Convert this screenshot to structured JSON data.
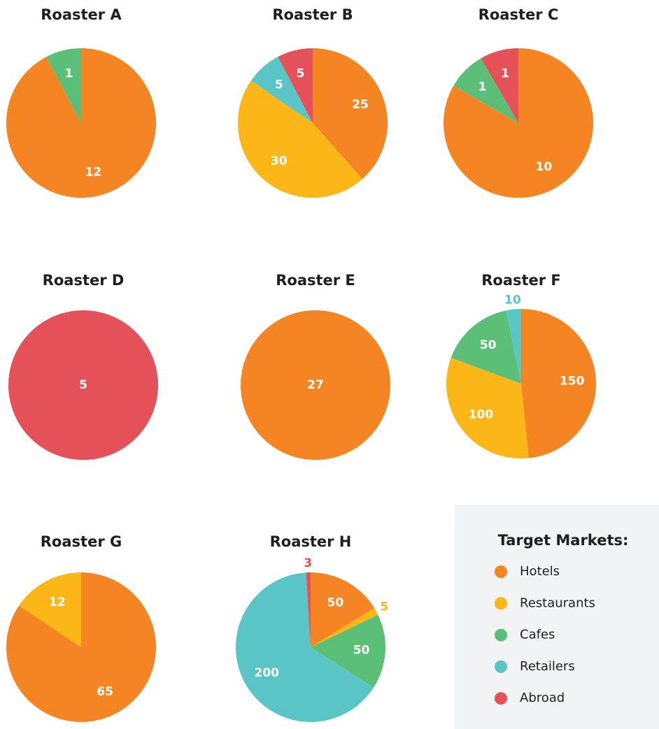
{
  "chart_data": [
    {
      "type": "pie",
      "title": "Roaster A",
      "categories": [
        "Hotels",
        "Cafes"
      ],
      "values": [
        12,
        1
      ]
    },
    {
      "type": "pie",
      "title": "Roaster B",
      "categories": [
        "Hotels",
        "Restaurants",
        "Retailers",
        "Abroad"
      ],
      "values": [
        25,
        30,
        5,
        5
      ]
    },
    {
      "type": "pie",
      "title": "Roaster C",
      "categories": [
        "Hotels",
        "Cafes",
        "Abroad"
      ],
      "values": [
        10,
        1,
        1
      ]
    },
    {
      "type": "pie",
      "title": "Roaster D",
      "categories": [
        "Abroad"
      ],
      "values": [
        5
      ]
    },
    {
      "type": "pie",
      "title": "Roaster E",
      "categories": [
        "Hotels"
      ],
      "values": [
        27
      ]
    },
    {
      "type": "pie",
      "title": "Roaster F",
      "categories": [
        "Hotels",
        "Restaurants",
        "Cafes",
        "Retailers"
      ],
      "values": [
        150,
        100,
        50,
        10
      ]
    },
    {
      "type": "pie",
      "title": "Roaster G",
      "categories": [
        "Hotels",
        "Restaurants"
      ],
      "values": [
        65,
        12
      ]
    },
    {
      "type": "pie",
      "title": "Roaster H",
      "categories": [
        "Hotels",
        "Restaurants",
        "Cafes",
        "Retailers",
        "Abroad"
      ],
      "values": [
        50,
        5,
        50,
        200,
        3
      ]
    }
  ],
  "legend": {
    "title": "Target Markets:",
    "items": [
      {
        "name": "Hotels",
        "color": "#f58423"
      },
      {
        "name": "Restaurants",
        "color": "#fbb617"
      },
      {
        "name": "Cafes",
        "color": "#5bbf77"
      },
      {
        "name": "Retailers",
        "color": "#59c5c7"
      },
      {
        "name": "Abroad",
        "color": "#e55159"
      }
    ]
  }
}
